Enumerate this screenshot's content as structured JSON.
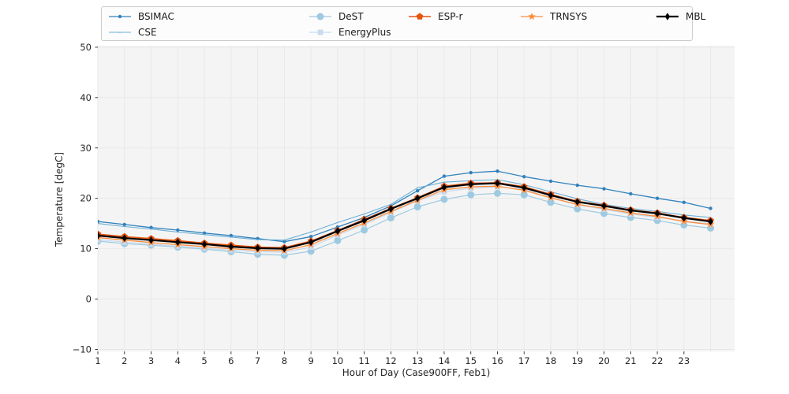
{
  "figure": {
    "background": "#ffffff",
    "plot_background": "#f4f4f4",
    "grid_color": "#e8e8e8",
    "tick_color": "#262626",
    "text_color": "#262626"
  },
  "legend": {
    "columns": [
      [
        "BSIMAC",
        "CSE"
      ],
      [
        "DeST",
        "EnergyPlus"
      ],
      [
        "ESP-r"
      ],
      [
        "TRNSYS"
      ],
      [
        "MBL"
      ]
    ]
  },
  "chart_data": {
    "type": "line",
    "title": "",
    "xlabel": "Hour of Day (Case900FF, Feb1)",
    "ylabel": "Temperature [degC]",
    "xlim": [
      1,
      24.9
    ],
    "ylim": [
      -10.4,
      50.3
    ],
    "grid": true,
    "legend_position": "top",
    "xticks": [
      1,
      2,
      3,
      4,
      5,
      6,
      7,
      8,
      9,
      10,
      11,
      12,
      13,
      14,
      15,
      16,
      17,
      18,
      19,
      20,
      21,
      22,
      23
    ],
    "xgrid": [
      1,
      2,
      3,
      4,
      5,
      6,
      7,
      8,
      9,
      10,
      11,
      12,
      13,
      14,
      15,
      16,
      17,
      18,
      19,
      20,
      21,
      22,
      23,
      24
    ],
    "yticks": [
      -10,
      0,
      10,
      20,
      30,
      40,
      50
    ],
    "ytick_labels": [
      "−10",
      "0",
      "10",
      "20",
      "30",
      "40",
      "50"
    ],
    "x": [
      1,
      2,
      3,
      4,
      5,
      6,
      7,
      8,
      9,
      10,
      11,
      12,
      13,
      14,
      15,
      16,
      17,
      18,
      19,
      20,
      21,
      22,
      23,
      24
    ],
    "series": [
      {
        "name": "BSIMAC",
        "color": "#3182bd",
        "marker": "dot",
        "marker_size": 2.2,
        "line_width": 1.3,
        "values": [
          15.4,
          14.8,
          14.2,
          13.7,
          13.1,
          12.6,
          12.0,
          11.4,
          12.4,
          14.3,
          16.2,
          18.5,
          21.5,
          24.4,
          25.1,
          25.4,
          24.3,
          23.4,
          22.6,
          21.9,
          20.9,
          20.0,
          19.2,
          18.0
        ]
      },
      {
        "name": "CSE",
        "color": "#6baed6",
        "marker": "pixel",
        "marker_size": 0.9,
        "line_width": 1.1,
        "values": [
          15.0,
          14.4,
          13.9,
          13.3,
          12.8,
          12.3,
          11.8,
          11.7,
          13.3,
          15.2,
          16.9,
          18.8,
          22.1,
          23.2,
          23.5,
          23.7,
          22.7,
          21.3,
          19.9,
          18.8,
          18.0,
          17.4,
          16.7,
          16.2
        ]
      },
      {
        "name": "DeST",
        "color": "#9ecae1",
        "marker": "circle",
        "marker_size": 4.5,
        "line_width": 1.2,
        "values": [
          11.5,
          11.0,
          10.7,
          10.3,
          9.9,
          9.4,
          8.9,
          8.7,
          9.5,
          11.6,
          13.7,
          16.1,
          18.3,
          19.8,
          20.7,
          21.0,
          20.7,
          19.2,
          17.9,
          17.0,
          16.2,
          15.6,
          14.7,
          14.1
        ]
      },
      {
        "name": "EnergyPlus",
        "color": "#c6dbef",
        "marker": "square",
        "marker_size": 3.4,
        "line_width": 1.2,
        "values": [
          11.8,
          11.3,
          10.9,
          10.5,
          10.1,
          9.7,
          9.4,
          9.3,
          10.3,
          12.7,
          14.8,
          17.2,
          19.5,
          21.3,
          22.0,
          22.3,
          21.8,
          20.1,
          18.7,
          17.8,
          16.9,
          16.2,
          15.5,
          14.9
        ]
      },
      {
        "name": "ESP-r",
        "color": "#e6550d",
        "marker": "pentagon",
        "marker_size": 4.6,
        "line_width": 1.6,
        "values": [
          12.9,
          12.4,
          12.0,
          11.6,
          11.1,
          10.7,
          10.3,
          10.2,
          11.5,
          13.6,
          15.8,
          18.0,
          20.1,
          22.4,
          23.0,
          23.1,
          22.3,
          20.8,
          19.4,
          18.6,
          17.7,
          17.1,
          16.2,
          15.6
        ]
      },
      {
        "name": "TRNSYS",
        "color": "#fd8d3c",
        "marker": "star",
        "marker_size": 5.0,
        "line_width": 1.3,
        "values": [
          12.2,
          11.7,
          11.2,
          10.8,
          10.4,
          10.0,
          9.7,
          9.6,
          10.8,
          13.0,
          15.1,
          17.4,
          19.6,
          21.7,
          22.3,
          22.4,
          21.6,
          20.1,
          18.8,
          18.0,
          17.1,
          16.4,
          15.4,
          14.8
        ]
      },
      {
        "name": "MBL",
        "color": "#000000",
        "marker": "diamond",
        "marker_size": 4.8,
        "line_width": 2.2,
        "values": [
          12.6,
          12.1,
          11.7,
          11.3,
          10.9,
          10.4,
          10.1,
          10.0,
          11.3,
          13.5,
          15.6,
          17.9,
          20.0,
          22.2,
          22.8,
          23.0,
          22.1,
          20.6,
          19.3,
          18.5,
          17.6,
          17.0,
          16.1,
          15.4
        ]
      }
    ]
  }
}
